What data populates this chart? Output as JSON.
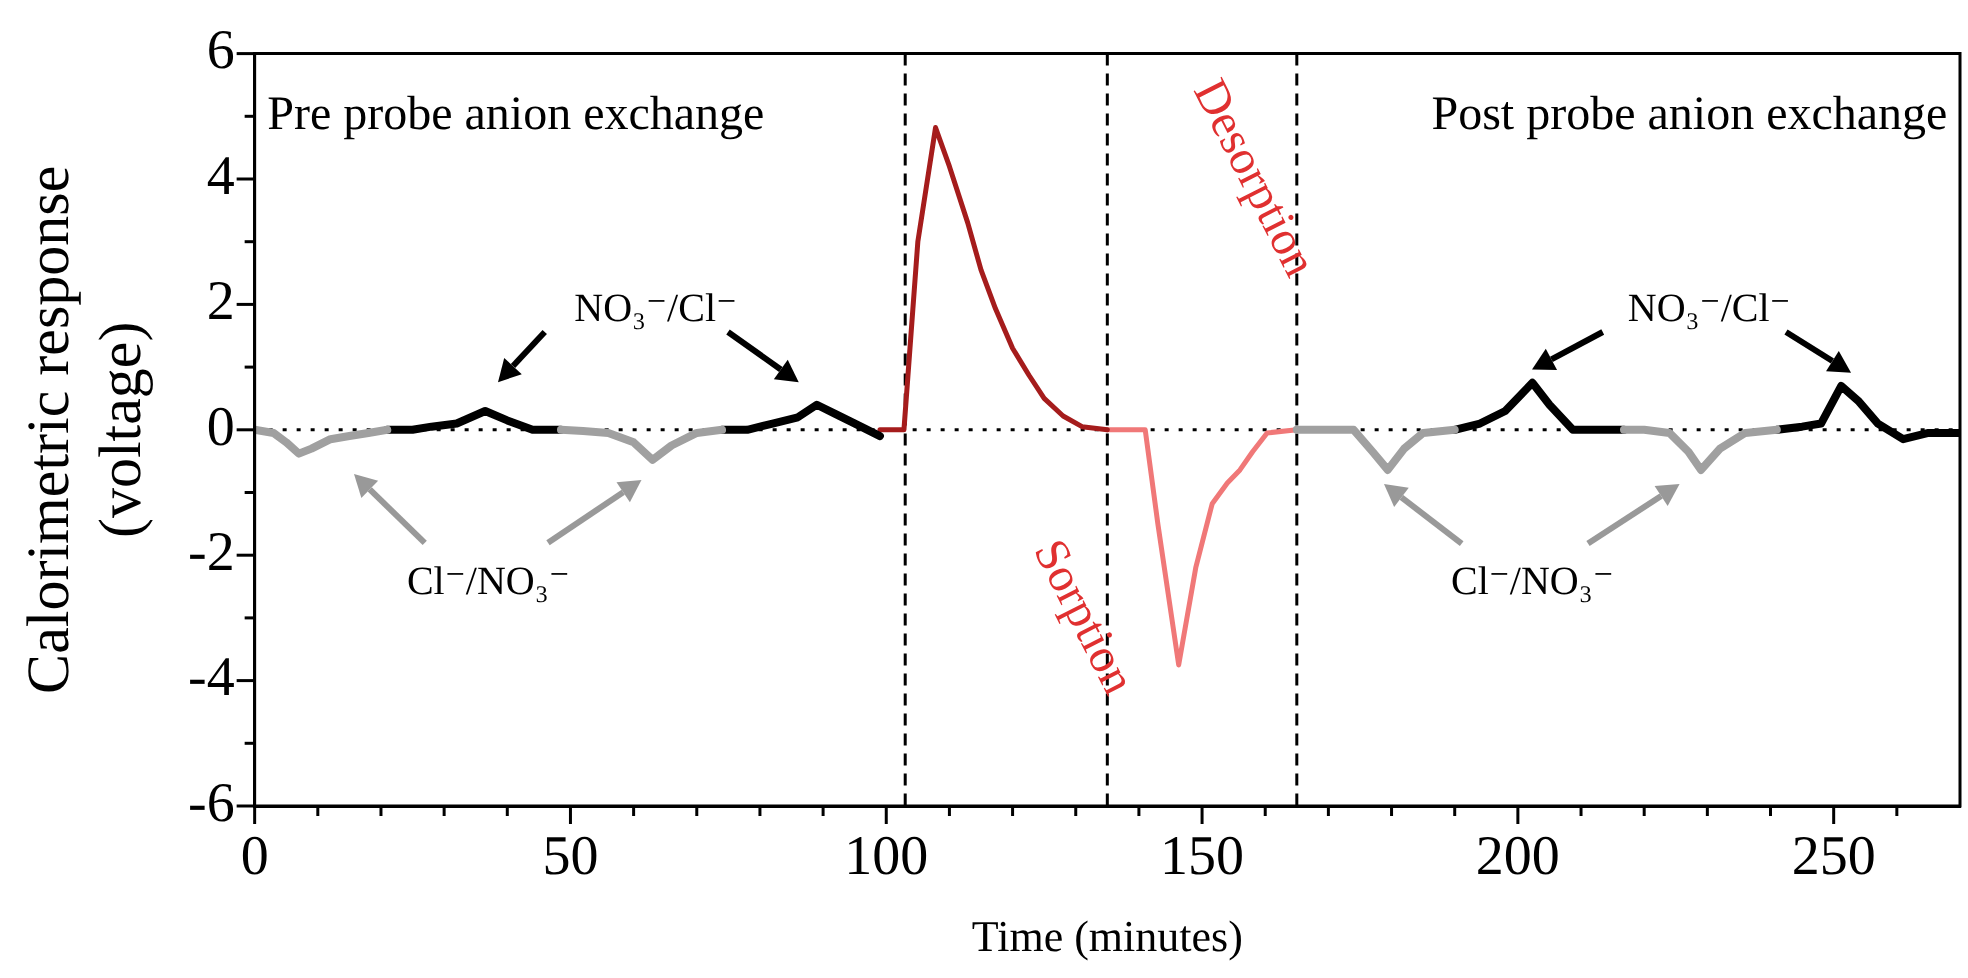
{
  "chart_data": {
    "type": "line",
    "xlabel": "Time (minutes)",
    "ylabel": "Calorimetric response\n(voltage)",
    "xlim": [
      0,
      270
    ],
    "xticks": [
      0,
      {
        "value": 10,
        "label": null
      },
      {
        "value": 20,
        "label": null
      },
      {
        "value": 30,
        "label": null
      },
      {
        "value": 40,
        "label": null
      },
      50,
      {
        "value": 60,
        "label": null
      },
      {
        "value": 70,
        "label": null
      },
      {
        "value": 80,
        "label": null
      },
      {
        "value": 90,
        "label": null
      },
      100,
      {
        "value": 110,
        "label": null
      },
      {
        "value": 120,
        "label": null
      },
      {
        "value": 130,
        "label": null
      },
      {
        "value": 140,
        "label": null
      },
      150,
      {
        "value": 160,
        "label": null
      },
      {
        "value": 170,
        "label": null
      },
      {
        "value": 180,
        "label": null
      },
      {
        "value": 190,
        "label": null
      },
      200,
      {
        "value": 210,
        "label": null
      },
      {
        "value": 220,
        "label": null
      },
      {
        "value": 230,
        "label": null
      },
      {
        "value": 240,
        "label": null
      },
      250,
      {
        "value": 260,
        "label": null
      }
    ],
    "ylim": [
      -6,
      6
    ],
    "yticks": [
      -6,
      {
        "value": -5,
        "label": null
      },
      -4,
      {
        "value": -3,
        "label": null
      },
      -2,
      {
        "value": -1,
        "label": null
      },
      0,
      {
        "value": 1,
        "label": null
      },
      2,
      {
        "value": 3,
        "label": null
      },
      4,
      {
        "value": 5,
        "label": null
      },
      6
    ],
    "grid": false,
    "legend": false,
    "marker": "none",
    "line_style": "solid",
    "series": [
      {
        "color": "#a0a0a0",
        "x": [
          0,
          3,
          5,
          7,
          9,
          12,
          15,
          18,
          21,
          30,
          48.5,
          52,
          56,
          60,
          63,
          66,
          70,
          74,
          120,
          165,
          170,
          174,
          177,
          179.4,
          182,
          185,
          190,
          200,
          216.8,
          220,
          224,
          227,
          229,
          232,
          236,
          241
        ],
        "values": [
          0,
          -0.05,
          -0.2,
          -0.38,
          -0.3,
          -0.15,
          -0.1,
          -0.05,
          0,
          null,
          0,
          -0.02,
          -0.05,
          -0.2,
          -0.48,
          -0.25,
          -0.05,
          0,
          null,
          0,
          0,
          0,
          -0.35,
          -0.64,
          -0.3,
          -0.05,
          0,
          null,
          0,
          0,
          -0.05,
          -0.35,
          -0.64,
          -0.3,
          -0.05,
          0
        ]
      },
      {
        "color": "#000000",
        "x": [
          21,
          25,
          28,
          32,
          36.5,
          40,
          44,
          48.5,
          60,
          74,
          78,
          82,
          86,
          89,
          92,
          96,
          99,
          150,
          190,
          194,
          198,
          202.3,
          205,
          208.7,
          212,
          216.8,
          230,
          241,
          245,
          248,
          251.2,
          254,
          257,
          261,
          265,
          270
        ],
        "values": [
          0,
          0,
          0.05,
          0.1,
          0.3,
          0.15,
          0,
          0,
          null,
          0,
          0,
          0.1,
          0.2,
          0.4,
          0.25,
          0.05,
          -0.1,
          null,
          0,
          0.1,
          0.3,
          0.75,
          0.4,
          0,
          0,
          0,
          null,
          0,
          0.05,
          0.1,
          0.7,
          0.45,
          0.1,
          -0.15,
          -0.05,
          -0.05
        ]
      },
      {
        "color": "#a51c1c",
        "x": [
          99,
          102.8,
          105,
          107.8,
          110,
          112.9,
          115,
          117.3,
          120,
          122.6,
          125,
          128,
          131,
          135
        ],
        "values": [
          0,
          0,
          3.0,
          4.82,
          4.2,
          3.3,
          2.55,
          1.93,
          1.3,
          0.87,
          0.5,
          0.22,
          0.05,
          0
        ]
      },
      {
        "color": "#f07878",
        "x": [
          135,
          141,
          143,
          146.3,
          149,
          151.6,
          154,
          156,
          158,
          160.3,
          165
        ],
        "values": [
          0,
          0,
          -1.5,
          -3.75,
          -2.2,
          -1.18,
          -0.85,
          -0.64,
          -0.35,
          -0.05,
          0
        ]
      }
    ],
    "ref_lines": [
      {
        "axis": "x",
        "value": 103,
        "line_style": "dashed",
        "color": "#000000"
      },
      {
        "axis": "x",
        "value": 135,
        "line_style": "dashed",
        "color": "#000000"
      },
      {
        "axis": "x",
        "value": 165,
        "line_style": "dashed",
        "color": "#000000"
      },
      {
        "axis": "y",
        "value": 0,
        "line_style": "dotted",
        "color": "#000000"
      }
    ],
    "annotations": [
      "Pre probe anion exchange",
      "Post probe anion exchange",
      "Sorption",
      "Desorption",
      "NO₃⁻/Cl⁻",
      "NO₃⁻/Cl⁻",
      "Cl⁻/NO₃⁻",
      "Cl⁻/NO₃⁻"
    ]
  }
}
